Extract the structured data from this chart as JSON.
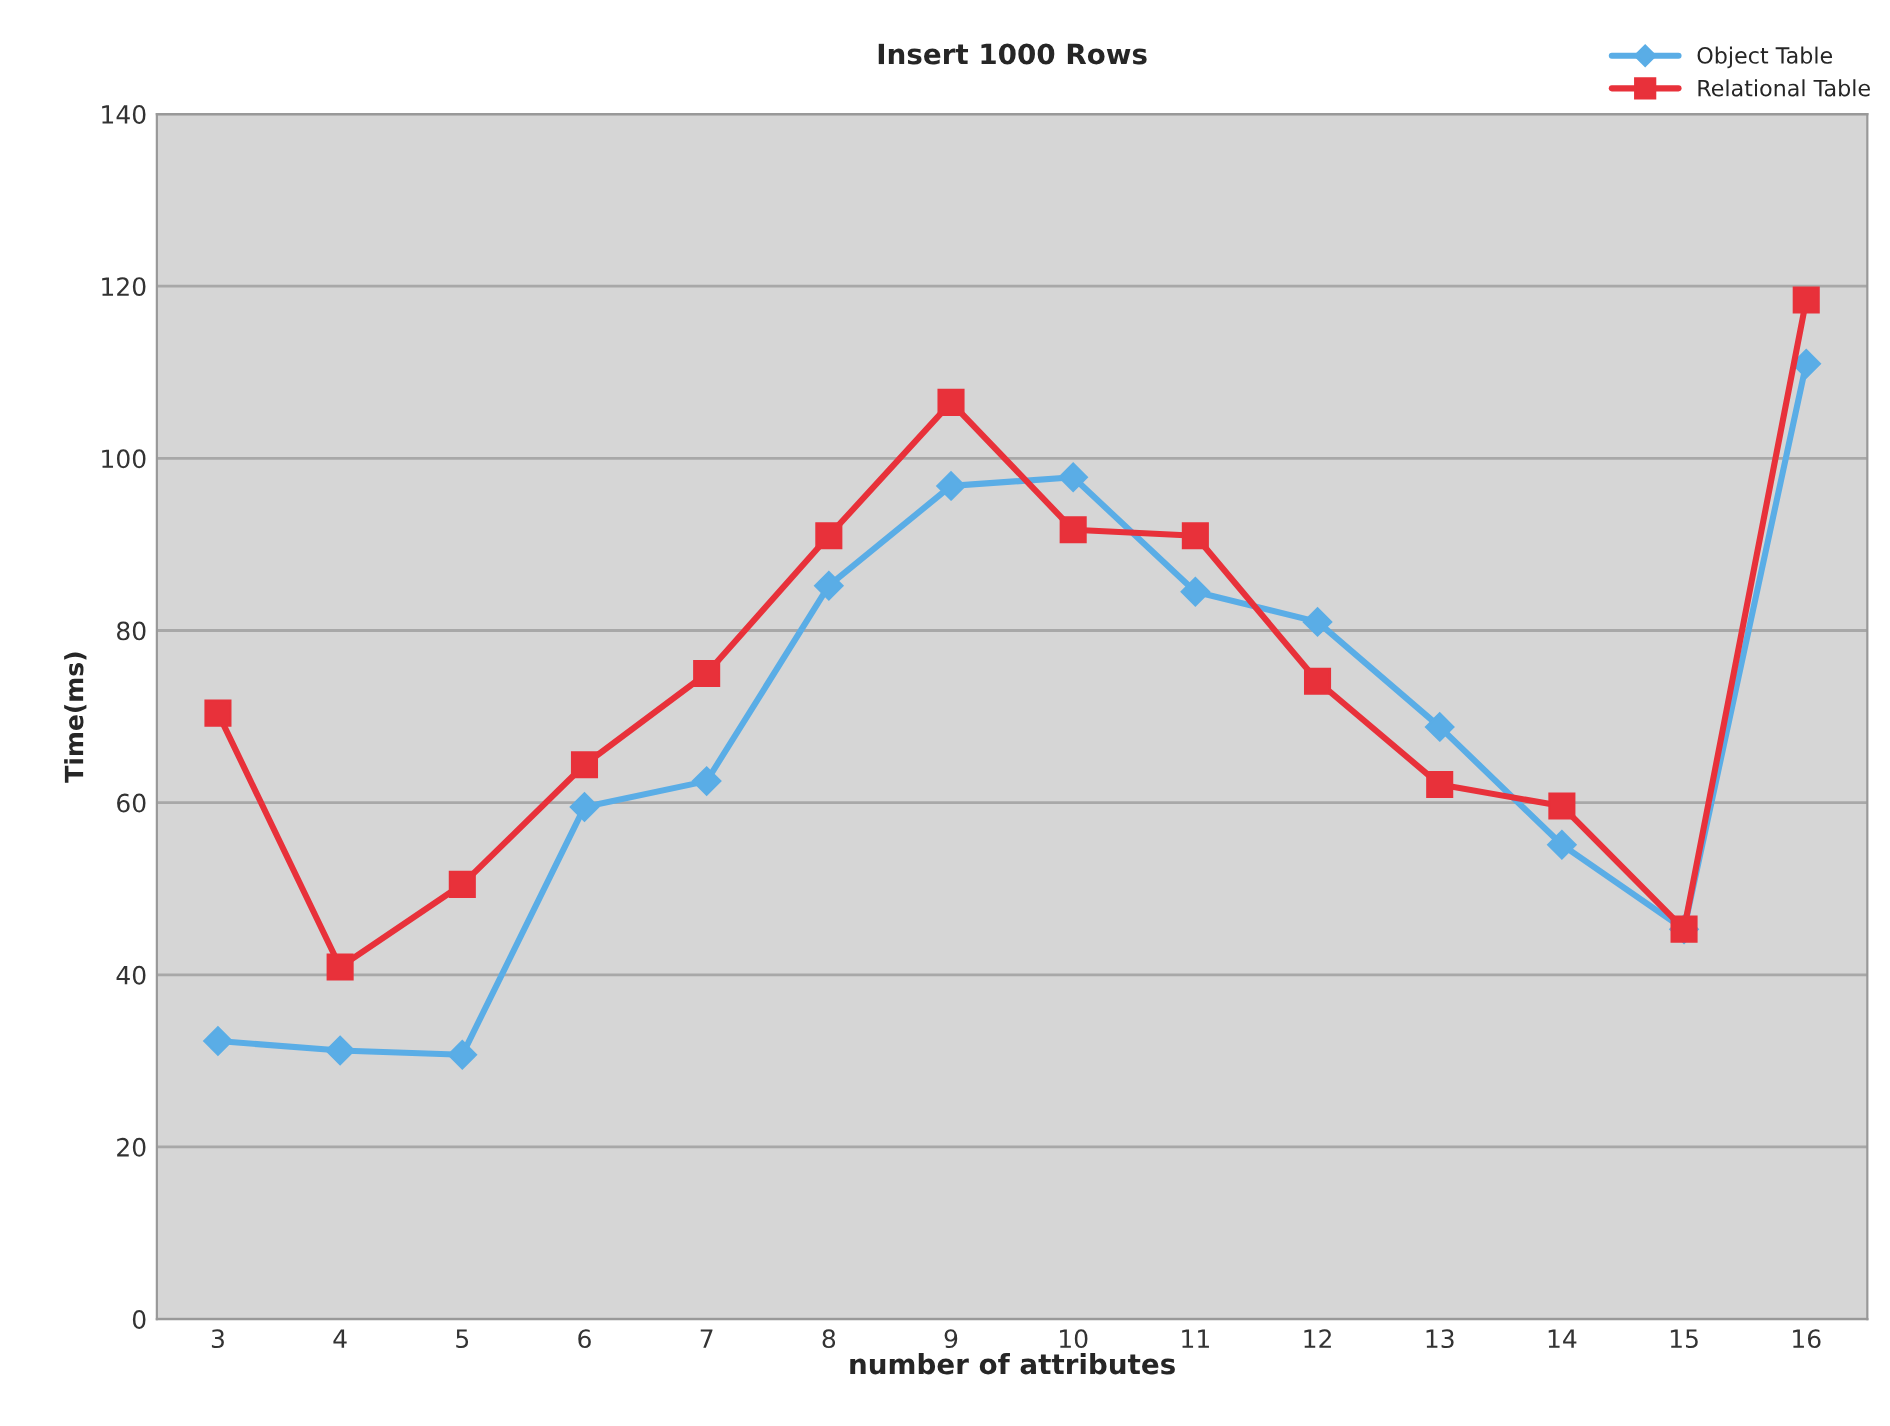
{
  "chart_data": {
    "type": "line",
    "title": "Insert 1000 Rows",
    "xlabel": "number of attributes",
    "ylabel": "Time(ms)",
    "categories": [
      "3",
      "4",
      "5",
      "6",
      "7",
      "8",
      "9",
      "10",
      "11",
      "12",
      "13",
      "14",
      "15",
      "16"
    ],
    "series": [
      {
        "name": "Object Table",
        "color": "#5aade6",
        "marker": "diamond",
        "values": [
          32.3,
          31.2,
          30.7,
          59.5,
          62.5,
          85.2,
          96.8,
          97.8,
          84.5,
          81.0,
          68.8,
          55.1,
          45.3,
          111.0
        ]
      },
      {
        "name": "Relational Table",
        "color": "#e8313a",
        "marker": "square",
        "values": [
          70.4,
          40.9,
          50.5,
          64.4,
          75.0,
          91.0,
          106.5,
          91.7,
          91.0,
          74.1,
          62.1,
          59.6,
          45.3,
          118.4
        ]
      }
    ],
    "ylim": [
      0,
      140
    ],
    "yticks": [
      0,
      20,
      40,
      60,
      80,
      100,
      120,
      140
    ],
    "grid": "y",
    "legend": "top right",
    "line_style": "solid"
  }
}
